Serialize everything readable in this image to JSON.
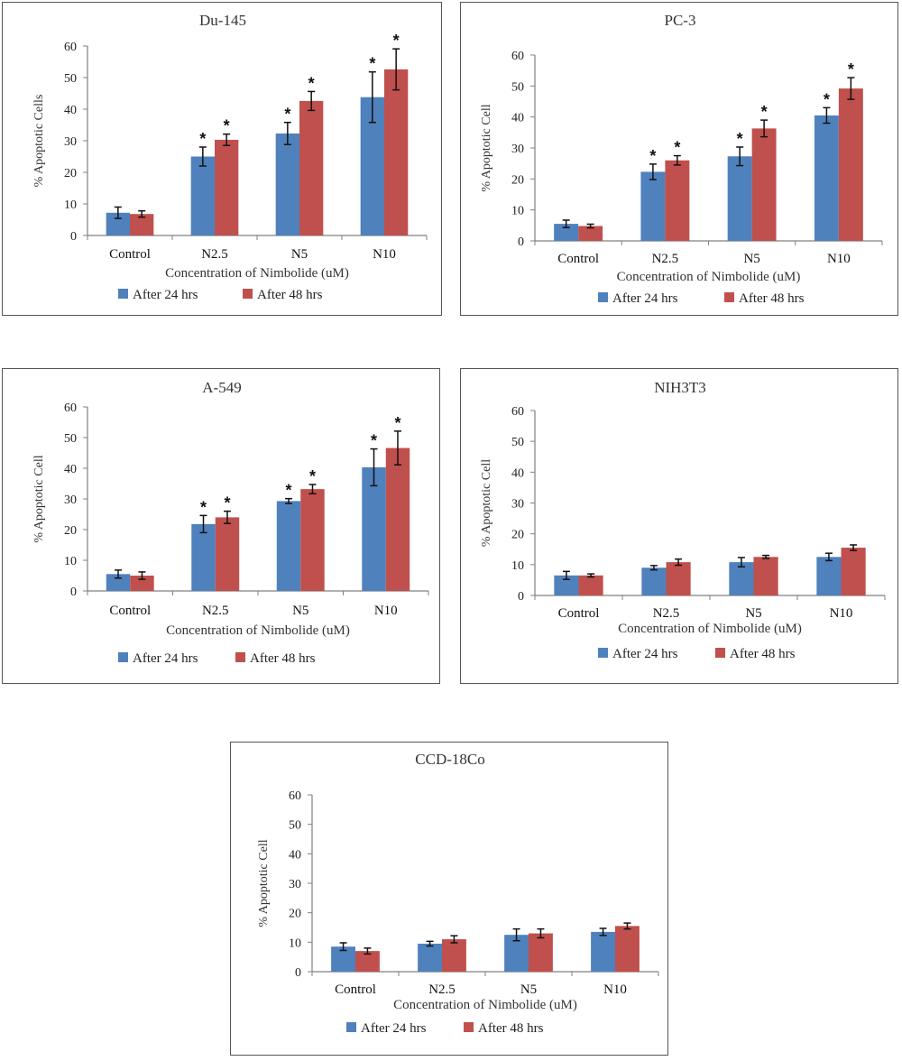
{
  "colors": {
    "after_24": "#4f81bd",
    "after_48": "#c0504d",
    "axis": "#808080"
  },
  "chart_data": [
    {
      "type": "bar",
      "title": "Du-145",
      "categories": [
        "Control",
        "N2.5",
        "N5",
        "N10"
      ],
      "xlabel": "Concentration of Nimbolide  (uM)",
      "ylabel": "% Apoptotic Cells",
      "ylim": [
        0,
        60
      ],
      "yticks": [
        "0",
        "10",
        "20",
        "30",
        "40",
        "50",
        "60"
      ],
      "series": [
        {
          "name": "After 24 hrs",
          "values": [
            7.2,
            25.0,
            32.3,
            43.8
          ],
          "errors": [
            1.8,
            3.0,
            3.5,
            8.0
          ],
          "significant": [
            false,
            true,
            true,
            true
          ]
        },
        {
          "name": "After 48 hrs",
          "values": [
            6.8,
            30.3,
            42.6,
            52.6
          ],
          "errors": [
            1.0,
            1.8,
            3.0,
            6.5
          ],
          "significant": [
            false,
            true,
            true,
            true
          ]
        }
      ],
      "legend": "bottom",
      "significance_marker": "*"
    },
    {
      "type": "bar",
      "title": "PC-3",
      "categories": [
        "Control",
        "N2.5",
        "N5",
        "N10"
      ],
      "xlabel": "Concentration of Nimbolide  (uM)",
      "ylabel": "% Apoptotic Cell",
      "ylim": [
        0,
        60
      ],
      "yticks": [
        "0",
        "10",
        "20",
        "30",
        "40",
        "50",
        "60"
      ],
      "series": [
        {
          "name": "After 24 hrs",
          "values": [
            5.5,
            22.3,
            27.3,
            40.5
          ],
          "errors": [
            1.2,
            2.5,
            3.0,
            2.5
          ],
          "significant": [
            false,
            true,
            true,
            true
          ]
        },
        {
          "name": "After 48 hrs",
          "values": [
            4.8,
            26.0,
            36.3,
            49.2
          ],
          "errors": [
            0.6,
            1.5,
            2.7,
            3.5
          ],
          "significant": [
            false,
            true,
            true,
            true
          ]
        }
      ],
      "legend": "bottom",
      "significance_marker": "*"
    },
    {
      "type": "bar",
      "title": "A-549",
      "categories": [
        "Control",
        "N2.5",
        "N5",
        "N10"
      ],
      "xlabel": "Concentration of Nimbolide  (uM)",
      "ylabel": "% Apoptotic Cell",
      "ylim": [
        0,
        60
      ],
      "yticks": [
        "0",
        "10",
        "20",
        "30",
        "40",
        "50",
        "60"
      ],
      "series": [
        {
          "name": "After 24 hrs",
          "values": [
            5.5,
            21.8,
            29.3,
            40.3
          ],
          "errors": [
            1.3,
            2.8,
            0.8,
            6.0
          ],
          "significant": [
            false,
            true,
            true,
            true
          ]
        },
        {
          "name": "After 48 hrs",
          "values": [
            5.0,
            24.0,
            33.2,
            46.6
          ],
          "errors": [
            1.2,
            2.0,
            1.5,
            5.5
          ],
          "significant": [
            false,
            true,
            true,
            true
          ]
        }
      ],
      "legend": "bottom",
      "significance_marker": "*"
    },
    {
      "type": "bar",
      "title": "NIH3T3",
      "categories": [
        "Control",
        "N2.5",
        "N5",
        "N10"
      ],
      "xlabel": "Concentration of Nimbolide  (uM)",
      "ylabel": "% Apoptotic Cell",
      "ylim": [
        0,
        60
      ],
      "yticks": [
        "0",
        "10",
        "20",
        "30",
        "40",
        "50",
        "60"
      ],
      "series": [
        {
          "name": "After 24 hrs",
          "values": [
            6.5,
            9.0,
            10.8,
            12.5
          ],
          "errors": [
            1.3,
            0.7,
            1.5,
            1.2
          ],
          "significant": [
            false,
            false,
            false,
            false
          ]
        },
        {
          "name": "After 48 hrs",
          "values": [
            6.5,
            10.8,
            12.5,
            15.5
          ],
          "errors": [
            0.5,
            1.0,
            0.5,
            0.9
          ],
          "significant": [
            false,
            false,
            false,
            false
          ]
        }
      ],
      "legend": "bottom",
      "significance_marker": "*"
    },
    {
      "type": "bar",
      "title": "CCD-18Co",
      "categories": [
        "Control",
        "N2.5",
        "N5",
        "N10"
      ],
      "xlabel": "Concentration of Nimbolide  (uM)",
      "ylabel": "% Apoptotic Cell",
      "ylim": [
        0,
        60
      ],
      "yticks": [
        "0",
        "10",
        "20",
        "30",
        "40",
        "50",
        "60"
      ],
      "series": [
        {
          "name": "After 24 hrs",
          "values": [
            8.5,
            9.5,
            12.5,
            13.5
          ],
          "errors": [
            1.3,
            0.8,
            2.0,
            1.2
          ],
          "significant": [
            false,
            false,
            false,
            false
          ]
        },
        {
          "name": "After 48 hrs",
          "values": [
            7.0,
            11.0,
            13.0,
            15.5
          ],
          "errors": [
            1.0,
            1.2,
            1.5,
            1.0
          ],
          "significant": [
            false,
            false,
            false,
            false
          ]
        }
      ],
      "legend": "bottom",
      "significance_marker": "*"
    }
  ]
}
